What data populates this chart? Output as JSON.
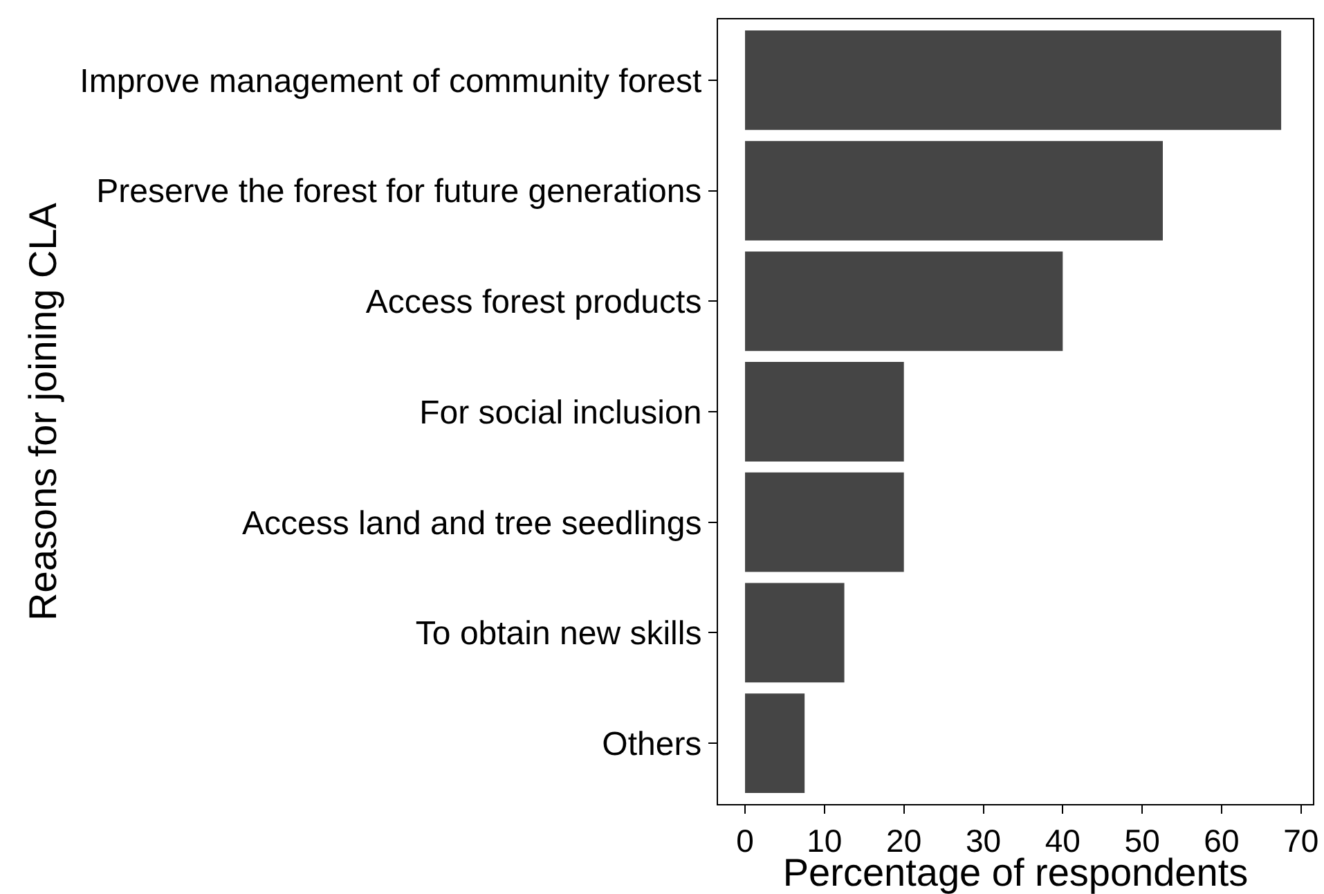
{
  "chart_data": {
    "type": "bar",
    "orientation": "horizontal",
    "xlabel": "Percentage of respondents",
    "ylabel": "Reasons for joining CLA",
    "categories": [
      "Improve management of community forest",
      "Preserve the forest for future generations",
      "Access forest products",
      "For social inclusion",
      "Access land and tree seedlings",
      "To obtain new skills",
      "Others"
    ],
    "values": [
      67.5,
      52.6,
      40.0,
      20.0,
      20.0,
      12.5,
      7.5
    ],
    "color": "#454545",
    "xlim": [
      -3.4,
      71.5
    ],
    "xticks": [
      0,
      10,
      20,
      30,
      40,
      50,
      60,
      70
    ]
  }
}
